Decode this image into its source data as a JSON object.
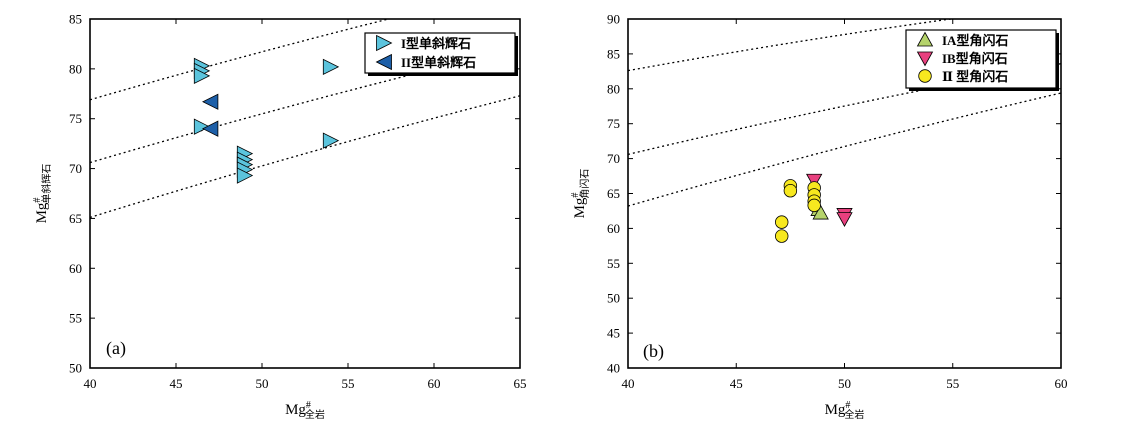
{
  "chart_data": [
    {
      "type": "scatter",
      "panel_label": "(a)",
      "xlabel": "Mg",
      "xlabel_sup": "#",
      "xlabel_sub": "全岩",
      "ylabel": "Mg",
      "ylabel_sup": "#",
      "ylabel_sub": "单斜辉石",
      "xlim": [
        40,
        65
      ],
      "ylim": [
        50,
        85
      ],
      "xticks": [
        40,
        45,
        50,
        55,
        60,
        65
      ],
      "yticks": [
        50,
        55,
        60,
        65,
        70,
        75,
        80,
        85
      ],
      "grid": false,
      "legend_position": "top-right",
      "reference_lines": [
        [
          [
            40,
            76.9
          ],
          [
            65,
            88.2
          ]
        ],
        [
          [
            40,
            70.6
          ],
          [
            65,
            82.1
          ]
        ],
        [
          [
            40,
            65.1
          ],
          [
            65,
            77.3
          ]
        ]
      ],
      "series": [
        {
          "name": "I型单斜辉石",
          "marker": "triangle-right",
          "color": "#5bc4dd",
          "points": [
            [
              46.5,
              80.3
            ],
            [
              46.5,
              79.8
            ],
            [
              46.5,
              79.3
            ],
            [
              46.5,
              74.2
            ],
            [
              49.0,
              71.5
            ],
            [
              49.0,
              70.9
            ],
            [
              49.0,
              70.4
            ],
            [
              49.0,
              69.9
            ],
            [
              49.0,
              69.3
            ],
            [
              54.0,
              80.2
            ],
            [
              54.0,
              72.8
            ]
          ]
        },
        {
          "name": "II型单斜辉石",
          "marker": "triangle-left",
          "color": "#1d5fa8",
          "points": [
            [
              47.0,
              76.7
            ],
            [
              47.0,
              74.0
            ]
          ]
        }
      ]
    },
    {
      "type": "scatter",
      "panel_label": "(b)",
      "xlabel": "Mg",
      "xlabel_sup": "#",
      "xlabel_sub": "全岩",
      "ylabel": "Mg",
      "ylabel_sup": "#",
      "ylabel_sub": "角闪石",
      "xlim": [
        40,
        60
      ],
      "ylim": [
        40,
        90
      ],
      "xticks": [
        40,
        45,
        50,
        55,
        60
      ],
      "yticks": [
        40,
        45,
        50,
        55,
        60,
        65,
        70,
        75,
        80,
        85,
        90
      ],
      "grid": false,
      "legend_position": "top-right",
      "reference_lines": [
        [
          [
            40,
            82.6
          ],
          [
            60,
            92.1
          ]
        ],
        [
          [
            40,
            70.6
          ],
          [
            60,
            83.6
          ]
        ],
        [
          [
            40,
            63.2
          ],
          [
            60,
            79.4
          ]
        ]
      ],
      "series": [
        {
          "name": "IA型角闪石",
          "marker": "triangle-up",
          "color": "#b5d36b",
          "points": [
            [
              48.8,
              62.7
            ],
            [
              48.9,
              62.2
            ]
          ]
        },
        {
          "name": "IB型角闪石",
          "marker": "triangle-down",
          "color": "#e8407f",
          "points": [
            [
              48.6,
              66.9
            ],
            [
              50.0,
              62.0
            ],
            [
              50.0,
              61.4
            ]
          ]
        },
        {
          "name": "Ⅱ 型角闪石",
          "marker": "circle",
          "color": "#f7e81f",
          "points": [
            [
              47.5,
              66.1
            ],
            [
              47.5,
              65.4
            ],
            [
              48.6,
              65.8
            ],
            [
              48.6,
              64.8
            ],
            [
              48.6,
              63.9
            ],
            [
              48.6,
              63.3
            ],
            [
              47.1,
              60.9
            ],
            [
              47.1,
              58.9
            ]
          ]
        }
      ]
    }
  ]
}
